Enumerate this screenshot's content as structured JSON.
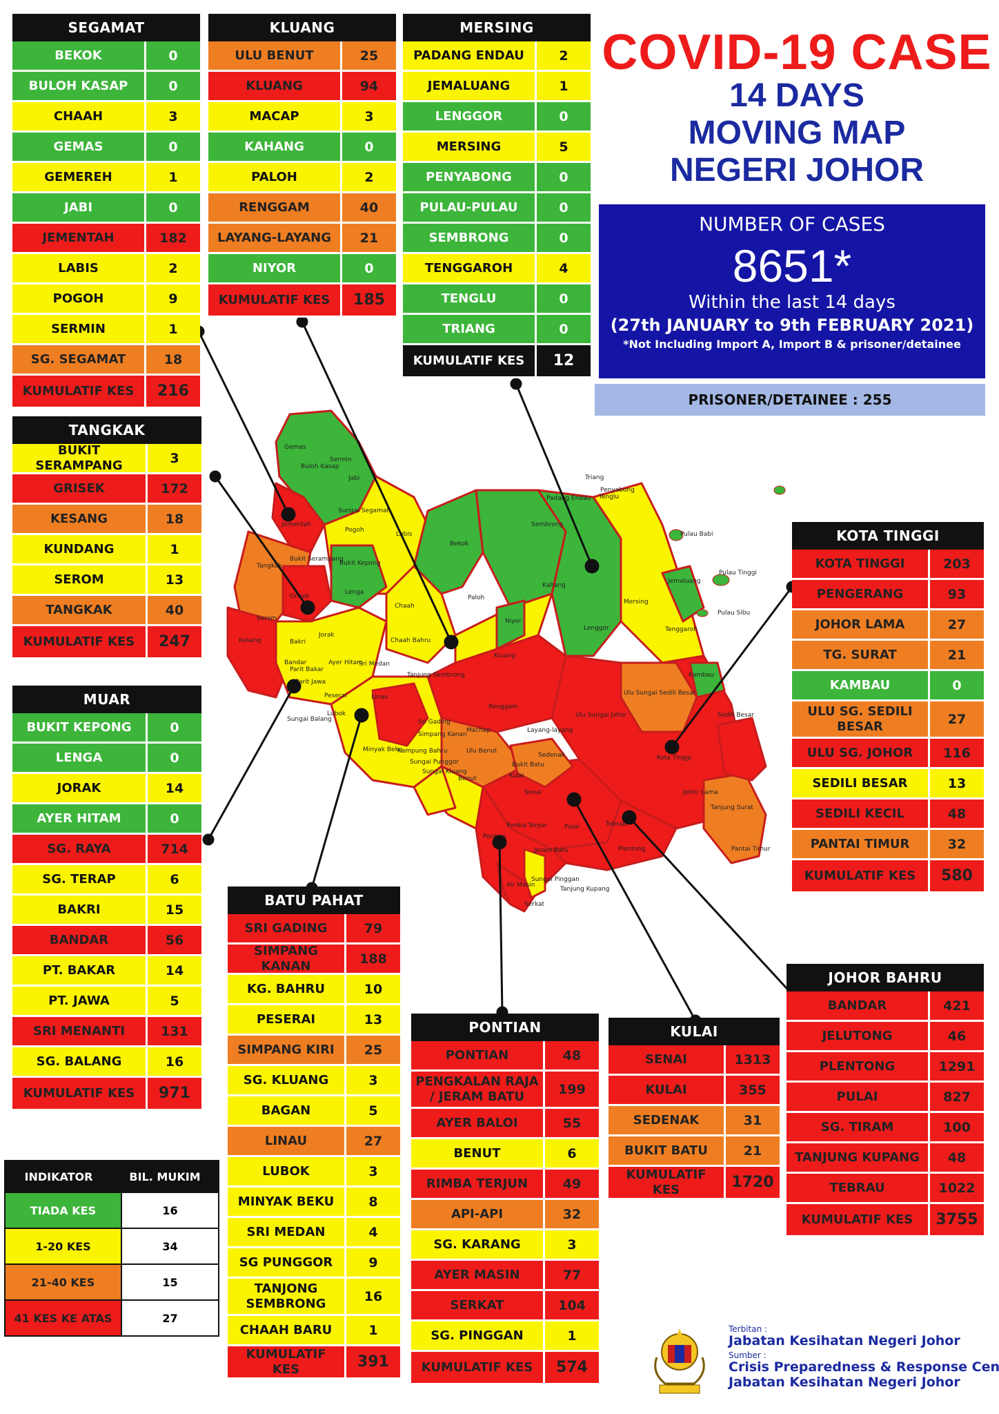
{
  "title": {
    "line1": "COVID-19 CASE",
    "line2": "14 DAYS",
    "line3": "MOVING MAP",
    "line4": "NEGERI JOHOR"
  },
  "summary": {
    "label": "NUMBER OF CASES",
    "total": "8651*",
    "within": "Within the last 14 days",
    "range": "(27th JANUARY to 9th FEBRUARY 2021)",
    "note": "*Not Including Import A, Import B & prisoner/detainee",
    "prisoner": "PRISONER/DETAINEE : 255"
  },
  "colors": {
    "green": "#3cb53a",
    "yellow": "#fbf400",
    "orange": "#ef7e22",
    "red": "#ee1b1b",
    "title_red": "#ee1b1b",
    "title_blue": "#1b2aa0"
  },
  "districts": {
    "segamat": {
      "name": "SEGAMAT",
      "rows": [
        {
          "n": "BEKOK",
          "v": "0",
          "c": "g"
        },
        {
          "n": "BULOH KASAP",
          "v": "0",
          "c": "g"
        },
        {
          "n": "CHAAH",
          "v": "3",
          "c": "y"
        },
        {
          "n": "GEMAS",
          "v": "0",
          "c": "g"
        },
        {
          "n": "GEMEREH",
          "v": "1",
          "c": "y"
        },
        {
          "n": "JABI",
          "v": "0",
          "c": "g"
        },
        {
          "n": "JEMENTAH",
          "v": "182",
          "c": "r"
        },
        {
          "n": "LABIS",
          "v": "2",
          "c": "y"
        },
        {
          "n": "POGOH",
          "v": "9",
          "c": "y"
        },
        {
          "n": "SERMIN",
          "v": "1",
          "c": "y"
        },
        {
          "n": "SG. SEGAMAT",
          "v": "18",
          "c": "o"
        }
      ],
      "total_label": "KUMULATIF KES",
      "total": "216"
    },
    "kluang": {
      "name": "KLUANG",
      "rows": [
        {
          "n": "ULU BENUT",
          "v": "25",
          "c": "o"
        },
        {
          "n": "KLUANG",
          "v": "94",
          "c": "r"
        },
        {
          "n": "MACAP",
          "v": "3",
          "c": "y"
        },
        {
          "n": "KAHANG",
          "v": "0",
          "c": "g"
        },
        {
          "n": "PALOH",
          "v": "2",
          "c": "y"
        },
        {
          "n": "RENGGAM",
          "v": "40",
          "c": "o"
        },
        {
          "n": "LAYANG-LAYANG",
          "v": "21",
          "c": "o"
        },
        {
          "n": "NIYOR",
          "v": "0",
          "c": "g"
        }
      ],
      "total_label": "KUMULATIF KES",
      "total": "185"
    },
    "mersing": {
      "name": "MERSING",
      "rows": [
        {
          "n": "PADANG ENDAU",
          "v": "2",
          "c": "y"
        },
        {
          "n": "JEMALUANG",
          "v": "1",
          "c": "y"
        },
        {
          "n": "LENGGOR",
          "v": "0",
          "c": "g"
        },
        {
          "n": "MERSING",
          "v": "5",
          "c": "y"
        },
        {
          "n": "PENYABONG",
          "v": "0",
          "c": "g"
        },
        {
          "n": "PULAU-PULAU",
          "v": "0",
          "c": "g"
        },
        {
          "n": "SEMBRONG",
          "v": "0",
          "c": "g"
        },
        {
          "n": "TENGGAROH",
          "v": "4",
          "c": "y"
        },
        {
          "n": "TENGLU",
          "v": "0",
          "c": "g"
        },
        {
          "n": "TRIANG",
          "v": "0",
          "c": "g"
        }
      ],
      "total_label": "KUMULATIF KES",
      "total": "12"
    },
    "tangkak": {
      "name": "TANGKAK",
      "rows": [
        {
          "n": "BUKIT SERAMPANG",
          "v": "3",
          "c": "y"
        },
        {
          "n": "GRISEK",
          "v": "172",
          "c": "r"
        },
        {
          "n": "KESANG",
          "v": "18",
          "c": "o"
        },
        {
          "n": "KUNDANG",
          "v": "1",
          "c": "y"
        },
        {
          "n": "SEROM",
          "v": "13",
          "c": "y"
        },
        {
          "n": "TANGKAK",
          "v": "40",
          "c": "o"
        }
      ],
      "total_label": "KUMULATIF KES",
      "total": "247"
    },
    "muar": {
      "name": "MUAR",
      "rows": [
        {
          "n": "BUKIT KEPONG",
          "v": "0",
          "c": "g"
        },
        {
          "n": "LENGA",
          "v": "0",
          "c": "g"
        },
        {
          "n": "JORAK",
          "v": "14",
          "c": "y"
        },
        {
          "n": "AYER HITAM",
          "v": "0",
          "c": "g"
        },
        {
          "n": "SG. RAYA",
          "v": "714",
          "c": "r"
        },
        {
          "n": "SG. TERAP",
          "v": "6",
          "c": "y"
        },
        {
          "n": "BAKRI",
          "v": "15",
          "c": "y"
        },
        {
          "n": "BANDAR",
          "v": "56",
          "c": "r"
        },
        {
          "n": "PT. BAKAR",
          "v": "14",
          "c": "y"
        },
        {
          "n": "PT. JAWA",
          "v": "5",
          "c": "y"
        },
        {
          "n": "SRI MENANTI",
          "v": "131",
          "c": "r"
        },
        {
          "n": "SG. BALANG",
          "v": "16",
          "c": "y"
        }
      ],
      "total_label": "KUMULATIF KES",
      "total": "971"
    },
    "batu_pahat": {
      "name": "BATU PAHAT",
      "rows": [
        {
          "n": "SRI GADING",
          "v": "79",
          "c": "r"
        },
        {
          "n": "SIMPANG KANAN",
          "v": "188",
          "c": "r"
        },
        {
          "n": "KG. BAHRU",
          "v": "10",
          "c": "y"
        },
        {
          "n": "PESERAI",
          "v": "13",
          "c": "y"
        },
        {
          "n": "SIMPANG KIRI",
          "v": "25",
          "c": "o"
        },
        {
          "n": "SG. KLUANG",
          "v": "3",
          "c": "y"
        },
        {
          "n": "BAGAN",
          "v": "5",
          "c": "y"
        },
        {
          "n": "LINAU",
          "v": "27",
          "c": "o"
        },
        {
          "n": "LUBOK",
          "v": "3",
          "c": "y"
        },
        {
          "n": "MINYAK BEKU",
          "v": "8",
          "c": "y"
        },
        {
          "n": "SRI MEDAN",
          "v": "4",
          "c": "y"
        },
        {
          "n": "SG PUNGGOR",
          "v": "9",
          "c": "y"
        },
        {
          "n": "TANJONG SEMBRONG",
          "v": "16",
          "c": "y"
        },
        {
          "n": "CHAAH BARU",
          "v": "1",
          "c": "y"
        }
      ],
      "total_label": "KUMULATIF KES",
      "total": "391"
    },
    "pontian": {
      "name": "PONTIAN",
      "rows": [
        {
          "n": "PONTIAN",
          "v": "48",
          "c": "r"
        },
        {
          "n": "PENGKALAN RAJA / JERAM BATU",
          "v": "199",
          "c": "r"
        },
        {
          "n": "AYER BALOI",
          "v": "55",
          "c": "r"
        },
        {
          "n": "BENUT",
          "v": "6",
          "c": "y"
        },
        {
          "n": "RIMBA TERJUN",
          "v": "49",
          "c": "r"
        },
        {
          "n": "API-API",
          "v": "32",
          "c": "o"
        },
        {
          "n": "SG. KARANG",
          "v": "3",
          "c": "y"
        },
        {
          "n": "AYER MASIN",
          "v": "77",
          "c": "r"
        },
        {
          "n": "SERKAT",
          "v": "104",
          "c": "r"
        },
        {
          "n": "SG. PINGGAN",
          "v": "1",
          "c": "y"
        }
      ],
      "total_label": "KUMULATIF KES",
      "total": "574"
    },
    "kulai": {
      "name": "KULAI",
      "rows": [
        {
          "n": "SENAI",
          "v": "1313",
          "c": "r"
        },
        {
          "n": "KULAI",
          "v": "355",
          "c": "r"
        },
        {
          "n": "SEDENAK",
          "v": "31",
          "c": "o"
        },
        {
          "n": "BUKIT BATU",
          "v": "21",
          "c": "o"
        }
      ],
      "total_label": "KUMULATIF KES",
      "total": "1720"
    },
    "kota_tinggi": {
      "name": "KOTA TINGGI",
      "rows": [
        {
          "n": "KOTA TINGGI",
          "v": "203",
          "c": "r"
        },
        {
          "n": "PENGERANG",
          "v": "93",
          "c": "r"
        },
        {
          "n": "JOHOR LAMA",
          "v": "27",
          "c": "o"
        },
        {
          "n": "TG. SURAT",
          "v": "21",
          "c": "o"
        },
        {
          "n": "KAMBAU",
          "v": "0",
          "c": "g"
        },
        {
          "n": "ULU SG. SEDILI BESAR",
          "v": "27",
          "c": "o"
        },
        {
          "n": "ULU SG. JOHOR",
          "v": "116",
          "c": "r"
        },
        {
          "n": "SEDILI BESAR",
          "v": "13",
          "c": "y"
        },
        {
          "n": "SEDILI KECIL",
          "v": "48",
          "c": "r"
        },
        {
          "n": "PANTAI TIMUR",
          "v": "32",
          "c": "o"
        }
      ],
      "total_label": "KUMULATIF KES",
      "total": "580"
    },
    "johor_bahru": {
      "name": "JOHOR BAHRU",
      "rows": [
        {
          "n": "BANDAR",
          "v": "421",
          "c": "r"
        },
        {
          "n": "JELUTONG",
          "v": "46",
          "c": "r"
        },
        {
          "n": "PLENTONG",
          "v": "1291",
          "c": "r"
        },
        {
          "n": "PULAI",
          "v": "827",
          "c": "r"
        },
        {
          "n": "SG. TIRAM",
          "v": "100",
          "c": "r"
        },
        {
          "n": "TANJUNG KUPANG",
          "v": "48",
          "c": "r"
        },
        {
          "n": "TEBRAU",
          "v": "1022",
          "c": "r"
        }
      ],
      "total_label": "KUMULATIF KES",
      "total": "3755"
    }
  },
  "legend": {
    "col1": "INDIKATOR",
    "col2": "BIL. MUKIM",
    "rows": [
      {
        "label": "TIADA KES",
        "value": "16",
        "c": "g"
      },
      {
        "label": "1-20 KES",
        "value": "34",
        "c": "y"
      },
      {
        "label": "21-40 KES",
        "value": "15",
        "c": "o"
      },
      {
        "label": "41 KES KE ATAS",
        "value": "27",
        "c": "r"
      }
    ]
  },
  "credits": {
    "terbitan_label": "Terbitan :",
    "terbitan": "Jabatan Kesihatan Negeri Johor",
    "sumber_label": "Sumber :",
    "sumber_line1": "Crisis Preparedness & Response Centre,",
    "sumber_line2": "Jabatan Kesihatan Negeri Johor"
  },
  "map_labels": [
    "Gemas",
    "Buloh Kasap",
    "Sermin",
    "Jabi",
    "Sungai Segamat",
    "Jementah",
    "Pogoh",
    "Bekok",
    "Labis",
    "Tangkak",
    "Bukit Serampang",
    "Bukit Kepong",
    "Lenga",
    "Chaah",
    "Paloh",
    "Niyor",
    "Kahang",
    "Lenggor",
    "Jemaluang",
    "Mersing",
    "Tenggaroh",
    "Tenglu",
    "Penyabong",
    "Sembrong",
    "Padang Endau",
    "Triang",
    "Pulau Babi",
    "Pulau Tinggi",
    "Pulau Sibu",
    "Grisek",
    "Serom",
    "Kesang",
    "Jorak",
    "Bakri",
    "Ayer Hitam",
    "Sri Medan",
    "Chaah Bahru",
    "Tanjung Sembrong",
    "Kluang",
    "Renggam",
    "Layang-layang",
    "Machap",
    "Ulu Benut",
    "Kambau",
    "Ulu Sungai Sedili Besar",
    "Ulu Sungai Johor",
    "Sedili Besar",
    "Kota Tinggi",
    "Johor Lama",
    "Tanjung Surat",
    "Pantai Timur",
    "Sedenak",
    "Senai",
    "Kulai",
    "Bukit Batu",
    "Pulai",
    "Tebrau",
    "Plentong",
    "Pontian",
    "Rimba Terjun",
    "Sungai Balang",
    "Linau",
    "Lubok",
    "Minyak Beku",
    "Kampung Bahru",
    "Sungai Punggor",
    "Sungai Kluang",
    "Benut",
    "Sungai Pinggan",
    "Jeram Batu",
    "Air Masin",
    "Serkat",
    "Tanjung Kupang",
    "Sri Gading",
    "Simpang Kanan",
    "Peserai",
    "Parit Bakar",
    "Parit Jawa",
    "Bandar"
  ]
}
